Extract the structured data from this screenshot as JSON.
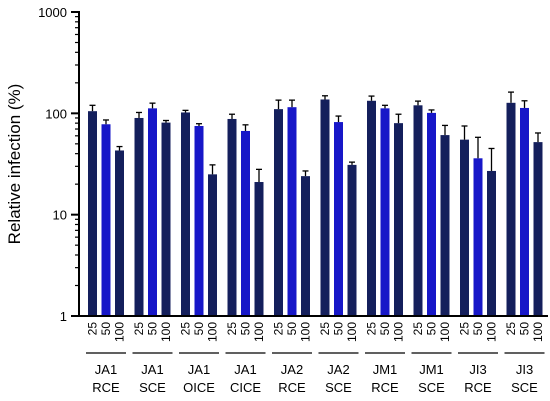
{
  "chart_data": {
    "type": "bar",
    "title": "",
    "ylabel": "Relative infection (%)",
    "xlabel": "",
    "yscale": "log",
    "ylim": [
      1,
      1000
    ],
    "yticks": [
      "1",
      "10",
      "100",
      "1000"
    ],
    "grid": false,
    "legend": "none",
    "concentrations": [
      "25",
      "50",
      "100"
    ],
    "groups": [
      {
        "line1": "JA1",
        "line2": "RCE",
        "values": [
          105,
          78,
          43
        ],
        "errors": [
          15,
          8,
          4
        ]
      },
      {
        "line1": "JA1",
        "line2": "SCE",
        "values": [
          90,
          112,
          81
        ],
        "errors": [
          12,
          14,
          4
        ]
      },
      {
        "line1": "JA1",
        "line2": "OICE",
        "values": [
          102,
          75,
          25
        ],
        "errors": [
          5,
          4,
          6
        ]
      },
      {
        "line1": "JA1",
        "line2": "CICE",
        "values": [
          88,
          67,
          21
        ],
        "errors": [
          10,
          10,
          7
        ]
      },
      {
        "line1": "JA2",
        "line2": "RCE",
        "values": [
          110,
          115,
          24
        ],
        "errors": [
          25,
          20,
          3
        ]
      },
      {
        "line1": "JA2",
        "line2": "SCE",
        "values": [
          137,
          82,
          31
        ],
        "errors": [
          12,
          12,
          2
        ]
      },
      {
        "line1": "JM1",
        "line2": "RCE",
        "values": [
          133,
          112,
          80
        ],
        "errors": [
          15,
          8,
          18
        ]
      },
      {
        "line1": "JM1",
        "line2": "SCE",
        "values": [
          120,
          101,
          61
        ],
        "errors": [
          12,
          7,
          15
        ]
      },
      {
        "line1": "JI3",
        "line2": "RCE",
        "values": [
          55,
          36,
          27
        ],
        "errors": [
          20,
          22,
          18
        ]
      },
      {
        "line1": "JI3",
        "line2": "SCE",
        "values": [
          127,
          113,
          52
        ],
        "errors": [
          35,
          20,
          12
        ]
      }
    ],
    "colors": {
      "bar_dark": "#141f5c",
      "bar_blue": "#1717c8",
      "axis": "#000000"
    }
  }
}
